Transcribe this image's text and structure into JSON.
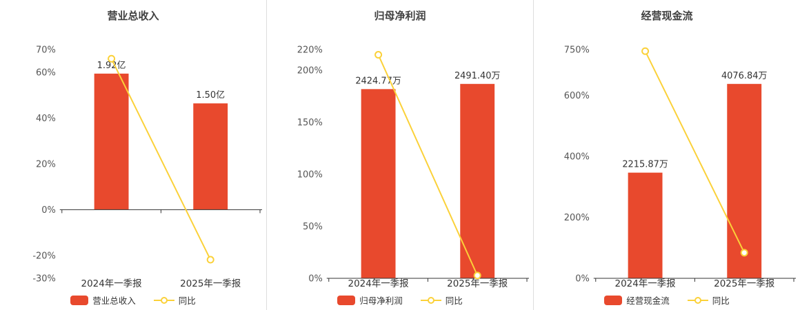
{
  "page": {
    "background": "#ffffff",
    "divider_color": "#dddddd"
  },
  "chart_data": [
    {
      "type": "bar",
      "title": "营业总收入",
      "categories": [
        "2024年一季报",
        "2025年一季报"
      ],
      "series": [
        {
          "name": "营业总收入",
          "type": "bar",
          "values": [
            1.92,
            1.5
          ],
          "unit": "亿",
          "labels": [
            "1.92亿",
            "1.50亿"
          ],
          "color": "#e8492d"
        },
        {
          "name": "同比",
          "type": "line",
          "values_pct": [
            66.0,
            -21.88
          ],
          "color": "#fbd139"
        }
      ],
      "ylim": [
        -30,
        70
      ],
      "yticks": [
        70,
        60,
        40,
        20,
        0,
        -20,
        -30
      ],
      "ytick_suffix": "%",
      "grid": false,
      "legend_position": "bottom",
      "bar_axis_top_fraction": 0.85
    },
    {
      "type": "bar",
      "title": "归母净利润",
      "categories": [
        "2024年一季报",
        "2025年一季报"
      ],
      "series": [
        {
          "name": "归母净利润",
          "type": "bar",
          "values": [
            2424.77,
            2491.4
          ],
          "unit": "万",
          "labels": [
            "2424.77万",
            "2491.40万"
          ],
          "color": "#e8492d"
        },
        {
          "name": "同比",
          "type": "line",
          "values_pct": [
            215.0,
            2.75
          ],
          "color": "#fbd139"
        }
      ],
      "ylim": [
        0,
        220
      ],
      "yticks": [
        220,
        200,
        150,
        100,
        50,
        0
      ],
      "ytick_suffix": "%",
      "grid": false,
      "legend_position": "bottom",
      "bar_axis_top_fraction": 0.85
    },
    {
      "type": "bar",
      "title": "经营现金流",
      "categories": [
        "2024年一季报",
        "2025年一季报"
      ],
      "series": [
        {
          "name": "经营现金流",
          "type": "bar",
          "values": [
            2215.87,
            4076.84
          ],
          "unit": "万",
          "labels": [
            "2215.87万",
            "4076.84万"
          ],
          "color": "#e8492d"
        },
        {
          "name": "同比",
          "type": "line",
          "values_pct": [
            745.0,
            83.98
          ],
          "color": "#fbd139"
        }
      ],
      "ylim": [
        0,
        750
      ],
      "yticks": [
        750,
        600,
        400,
        200,
        0
      ],
      "ytick_suffix": "%",
      "grid": false,
      "legend_position": "bottom",
      "bar_axis_top_fraction": 0.85
    }
  ]
}
